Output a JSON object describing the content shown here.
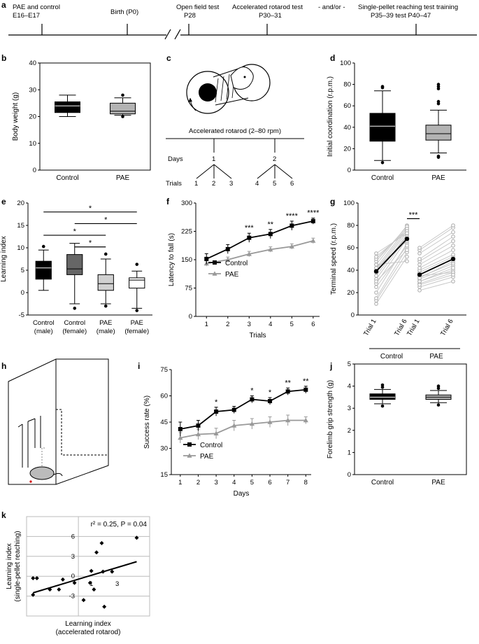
{
  "panels": {
    "a": "a",
    "b": "b",
    "c": "c",
    "d": "d",
    "e": "e",
    "f": "f",
    "g": "g",
    "h": "h",
    "i": "i",
    "j": "j",
    "k": "k"
  },
  "timeline": {
    "events": [
      "PAE and control",
      "E16–E17",
      "Birth (P0)",
      "Open field test",
      "P28",
      "Accelerated rotarod test",
      "P30–31",
      "- and/or -",
      "Single-pellet reaching test training",
      "P35–39 test P40–47"
    ]
  },
  "rotarod_schematic": {
    "title": "Accelerated rotarod (2–80 rpm)",
    "days_label": "Days",
    "trials_label": "Trials",
    "days": [
      "1",
      "2"
    ],
    "trials": [
      "1",
      "2",
      "3",
      "4",
      "5",
      "6"
    ]
  },
  "chart_data": [
    {
      "id": "b",
      "type": "box",
      "ylabel": "Body weight (g)",
      "ylim": [
        0,
        40
      ],
      "yticks": [
        0,
        10,
        20,
        30,
        40
      ],
      "categories": [
        "Control",
        "PAE"
      ],
      "boxes": [
        {
          "name": "Control",
          "min": 20,
          "q1": 21.5,
          "median": 24,
          "q3": 25.5,
          "max": 28,
          "fill": "#000000",
          "outliers": []
        },
        {
          "name": "PAE",
          "min": 20.5,
          "q1": 21,
          "median": 22,
          "q3": 25,
          "max": 27,
          "fill": "#b3b3b3",
          "outliers": [
            20,
            28
          ]
        }
      ]
    },
    {
      "id": "d",
      "type": "box",
      "ylabel": "Initial coordination (r.p.m.)",
      "ylim": [
        0,
        100
      ],
      "yticks": [
        0,
        20,
        40,
        60,
        80,
        100
      ],
      "categories": [
        "Control",
        "PAE"
      ],
      "boxes": [
        {
          "name": "Control",
          "min": 9,
          "q1": 27,
          "median": 41,
          "q3": 53,
          "max": 74,
          "fill": "#000000",
          "outliers": [
            77,
            78,
            7
          ]
        },
        {
          "name": "PAE",
          "min": 16,
          "q1": 28,
          "median": 34,
          "q3": 42,
          "max": 56,
          "fill": "#b3b3b3",
          "outliers": [
            62,
            64,
            76,
            78,
            80,
            12,
            13
          ]
        }
      ]
    },
    {
      "id": "e",
      "type": "box",
      "ylabel": "Learning index",
      "ylim": [
        -5,
        20
      ],
      "yticks": [
        -5,
        0,
        5,
        10,
        15,
        20
      ],
      "categories": [
        "Control (male)",
        "Control (female)",
        "PAE (male)",
        "PAE (female)"
      ],
      "boxes": [
        {
          "name": "Control (male)",
          "min": 0.5,
          "q1": 3,
          "median": 5.5,
          "q3": 7,
          "max": 9.5,
          "fill": "#000000",
          "outliers": [
            10.3
          ]
        },
        {
          "name": "Control (female)",
          "min": -2.5,
          "q1": 4,
          "median": 5.3,
          "q3": 8.5,
          "max": 11,
          "fill": "#666666",
          "outliers": [
            -3.5
          ]
        },
        {
          "name": "PAE (male)",
          "min": -2.5,
          "q1": 0.5,
          "median": 2,
          "q3": 4,
          "max": 7.5,
          "fill": "#d0d0d0",
          "outliers": [
            8.6,
            -3
          ]
        },
        {
          "name": "PAE (female)",
          "min": -3.5,
          "q1": 1,
          "median": 2.8,
          "q3": 3.3,
          "max": 4.8,
          "fill": "#ffffff",
          "outliers": [
            6.3,
            -4
          ]
        }
      ],
      "significance": [
        {
          "from": 0,
          "to": 3,
          "y": 18,
          "label": "*"
        },
        {
          "from": 1,
          "to": 3,
          "y": 15.4,
          "label": "*"
        },
        {
          "from": 0,
          "to": 2,
          "y": 12.8,
          "label": "*"
        },
        {
          "from": 1,
          "to": 2,
          "y": 10.2,
          "label": "*"
        }
      ]
    },
    {
      "id": "f",
      "type": "line",
      "xlabel": "Trials",
      "ylabel": "Latency to fall (s)",
      "x": [
        1,
        2,
        3,
        4,
        5,
        6
      ],
      "xlim": [
        0.5,
        6.3
      ],
      "ylim": [
        0,
        300
      ],
      "yticks": [
        0,
        75,
        150,
        225,
        300
      ],
      "series": [
        {
          "name": "Control",
          "values": [
            152,
            178,
            208,
            218,
            240,
            252
          ],
          "errors": [
            14,
            12,
            12,
            12,
            12,
            8
          ],
          "color": "#000000",
          "marker": "square"
        },
        {
          "name": "PAE",
          "values": [
            140,
            150,
            165,
            177,
            185,
            200
          ],
          "errors": [
            7,
            7,
            7,
            7,
            7,
            7
          ],
          "color": "#999999",
          "marker": "triangle"
        }
      ],
      "annotations": [
        {
          "x": 3,
          "label": "***"
        },
        {
          "x": 4,
          "label": "**"
        },
        {
          "x": 5,
          "label": "****"
        },
        {
          "x": 6,
          "label": "****"
        }
      ]
    },
    {
      "id": "g",
      "type": "paired",
      "ylabel": "Terminal speed (r.p.m.)",
      "ylim": [
        0,
        100
      ],
      "yticks": [
        0,
        20,
        40,
        60,
        80,
        100
      ],
      "categories": [
        "Trial 1",
        "Trial 6",
        "Trial 1",
        "Trial 6"
      ],
      "groups": [
        "Control",
        "PAE"
      ],
      "means": [
        {
          "group": "Control",
          "trial1": 39,
          "trial6": 68
        },
        {
          "group": "PAE",
          "trial1": 36,
          "trial6": 50
        }
      ],
      "pairs_control": [
        [
          10,
          52
        ],
        [
          13,
          56
        ],
        [
          15,
          60
        ],
        [
          20,
          64
        ],
        [
          28,
          68
        ],
        [
          32,
          70
        ],
        [
          35,
          72
        ],
        [
          38,
          74
        ],
        [
          40,
          76
        ],
        [
          42,
          78
        ],
        [
          45,
          80
        ],
        [
          48,
          79
        ],
        [
          50,
          77
        ],
        [
          52,
          75
        ],
        [
          55,
          73
        ],
        [
          45,
          48
        ],
        [
          42,
          66
        ],
        [
          38,
          70
        ],
        [
          30,
          58
        ],
        [
          25,
          62
        ]
      ],
      "pairs_pae": [
        [
          22,
          30
        ],
        [
          25,
          34
        ],
        [
          28,
          38
        ],
        [
          30,
          40
        ],
        [
          32,
          44
        ],
        [
          34,
          46
        ],
        [
          36,
          50
        ],
        [
          38,
          52
        ],
        [
          40,
          54
        ],
        [
          42,
          58
        ],
        [
          45,
          62
        ],
        [
          48,
          66
        ],
        [
          50,
          70
        ],
        [
          55,
          74
        ],
        [
          58,
          78
        ],
        [
          60,
          80
        ],
        [
          35,
          38
        ],
        [
          30,
          42
        ],
        [
          27,
          36
        ],
        [
          33,
          48
        ]
      ],
      "significance": [
        {
          "from": 1,
          "to": 2,
          "y": 86,
          "label": "***"
        }
      ]
    },
    {
      "id": "i",
      "type": "line",
      "xlabel": "Days",
      "ylabel": "Success rate (%)",
      "x": [
        1,
        2,
        3,
        4,
        5,
        6,
        7,
        8
      ],
      "xlim": [
        0.5,
        8.3
      ],
      "ylim": [
        15,
        75
      ],
      "yticks": [
        15,
        30,
        45,
        60,
        75
      ],
      "series": [
        {
          "name": "Control",
          "values": [
            41,
            43,
            51,
            52,
            58,
            57,
            62.5,
            63.5
          ],
          "errors": [
            4,
            3,
            2.5,
            2,
            2,
            2,
            2,
            2
          ],
          "color": "#000000",
          "marker": "square"
        },
        {
          "name": "PAE",
          "values": [
            36,
            38,
            38.5,
            43,
            44,
            45,
            46,
            46
          ],
          "errors": [
            3,
            3,
            3,
            3,
            3,
            3,
            3,
            2
          ],
          "color": "#999999",
          "marker": "triangle"
        }
      ],
      "annotations": [
        {
          "x": 3,
          "label": "*"
        },
        {
          "x": 5,
          "label": "*"
        },
        {
          "x": 6,
          "label": "*"
        },
        {
          "x": 7,
          "label": "**"
        },
        {
          "x": 8,
          "label": "**"
        }
      ]
    },
    {
      "id": "j",
      "type": "box",
      "ylabel": "Forelimb grip strength (g)",
      "ylim": [
        0,
        5
      ],
      "yticks": [
        0,
        1,
        2,
        3,
        4,
        5
      ],
      "categories": [
        "Control",
        "PAE"
      ],
      "boxes": [
        {
          "name": "Control",
          "min": 3.2,
          "q1": 3.4,
          "median": 3.5,
          "q3": 3.65,
          "max": 3.85,
          "fill": "#000000",
          "outliers": [
            3.95,
            4.05,
            3.1
          ]
        },
        {
          "name": "PAE",
          "min": 3.25,
          "q1": 3.4,
          "median": 3.5,
          "q3": 3.6,
          "max": 3.8,
          "fill": "#b3b3b3",
          "outliers": [
            3.9,
            4.0,
            3.15
          ]
        }
      ]
    },
    {
      "id": "k",
      "type": "scatter",
      "xlabel": "Learning index\n(accelerated rotarod)",
      "ylabel": "Learning index\n(single-pellet reaching)",
      "xlim": [
        -4,
        5.5
      ],
      "ylim": [
        -6,
        9
      ],
      "xticks": [
        1,
        3
      ],
      "yticks": [
        -3,
        0,
        3,
        6
      ],
      "stat": "r² = 0.25, P = 0.04",
      "points": [
        [
          -3.5,
          -0.3
        ],
        [
          -3.2,
          -0.3
        ],
        [
          -3.5,
          -2.8
        ],
        [
          -2.2,
          -2
        ],
        [
          -1.5,
          -2
        ],
        [
          -1.2,
          -0.5
        ],
        [
          -0.3,
          -1
        ],
        [
          0.4,
          -3.6
        ],
        [
          0.9,
          -1
        ],
        [
          1.0,
          0.8
        ],
        [
          1.4,
          3.6
        ],
        [
          1.2,
          -2
        ],
        [
          1.8,
          5
        ],
        [
          1.9,
          0.7
        ],
        [
          2.0,
          -4.6
        ],
        [
          2.6,
          0.7
        ],
        [
          4.5,
          5.8
        ]
      ],
      "fit": {
        "x": [
          -3.5,
          4.5
        ],
        "y": [
          -2.5,
          2.2
        ]
      }
    }
  ]
}
